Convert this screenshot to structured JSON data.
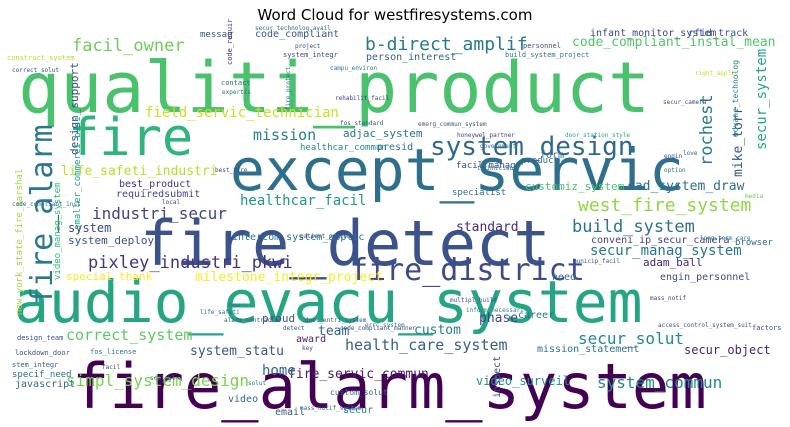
{
  "title": "Word Cloud for westfiresystems.com",
  "words": [
    {
      "text": "qualiti_product",
      "color": "#4ac16d"
    },
    {
      "text": "fire",
      "color": "#2fb47c"
    },
    {
      "text": "except_servic",
      "color": "#2e6f8e"
    },
    {
      "text": "fire_detect",
      "color": "#3b528b"
    },
    {
      "text": "audio_evacu_system",
      "color": "#25a584"
    },
    {
      "text": "fire_alarm_system",
      "color": "#440154"
    },
    {
      "text": "fire_alarm",
      "color": "#2a788e"
    },
    {
      "text": "system_design",
      "color": "#31688e"
    },
    {
      "text": "fire_district",
      "color": "#3e4a89"
    },
    {
      "text": "b-direct_amplif",
      "color": "#29798e"
    },
    {
      "text": "facil_owner",
      "color": "#6ece58"
    },
    {
      "text": "west_fire_system",
      "color": "#8fd744"
    },
    {
      "text": "pixley_industri_pkwi",
      "color": "#453581"
    },
    {
      "text": "industri_secur",
      "color": "#414487"
    },
    {
      "text": "build_system",
      "color": "#2c728e"
    },
    {
      "text": "health_care_system",
      "color": "#35608d"
    },
    {
      "text": "simpl_system_design",
      "color": "#7ad151"
    },
    {
      "text": "system_commun",
      "color": "#23888e"
    },
    {
      "text": "correct_system",
      "color": "#5ec962"
    },
    {
      "text": "secur_solut",
      "color": "#23898e"
    },
    {
      "text": "mission",
      "color": "#277f8e"
    },
    {
      "text": "rochest",
      "color": "#287c8e"
    },
    {
      "text": "field_servic_technician",
      "color": "#c8e020"
    },
    {
      "text": "life_safeti_industri",
      "color": "#b8de29"
    },
    {
      "text": "code_compliant_instal_mean",
      "color": "#52c569"
    },
    {
      "text": "healthcar_facil",
      "color": "#1f978b"
    },
    {
      "text": "cad_system_draw",
      "color": "#2d708e"
    },
    {
      "text": "milestone_integr_project",
      "color": "#fde725"
    },
    {
      "text": "secur_manag_system",
      "color": "#2b758e"
    },
    {
      "text": "system_statu",
      "color": "#3a548c"
    },
    {
      "text": "fire_servic_commun",
      "color": "#481b6d"
    },
    {
      "text": "video_surveil",
      "color": "#20928c"
    },
    {
      "text": "home",
      "color": "#33638d"
    },
    {
      "text": "custom",
      "color": "#26818e"
    },
    {
      "text": "phase",
      "color": "#404588"
    },
    {
      "text": "standard",
      "color": "#472c7a"
    },
    {
      "text": "customiz_system",
      "color": "#4ac16d"
    },
    {
      "text": "adjac_system",
      "color": "#2a778e"
    },
    {
      "text": "mike_torr",
      "color": "#39568c"
    },
    {
      "text": "secur_system",
      "color": "#21a685"
    },
    {
      "text": "adam_ball",
      "color": "#482677"
    },
    {
      "text": "design_support",
      "color": "#3d4d8a"
    },
    {
      "text": "person_interest",
      "color": "#33638d"
    },
    {
      "text": "intercom_system_applic",
      "color": "#2d718e"
    },
    {
      "text": "system_deploy",
      "color": "#3b518b"
    },
    {
      "text": "requiredsubmit",
      "color": "#3f4788"
    },
    {
      "text": "best_product",
      "color": "#46337f"
    },
    {
      "text": "system",
      "color": "#3e4989"
    },
    {
      "text": "special_thank",
      "color": "#fde725"
    },
    {
      "text": "secur_object",
      "color": "#482475"
    },
    {
      "text": "mission_statement",
      "color": "#2c738e"
    },
    {
      "text": "conveni_ip_secur_camera",
      "color": "#404688"
    },
    {
      "text": "engin_personnel",
      "color": "#3c4f8a"
    },
    {
      "text": "code_compliant",
      "color": "#38598c"
    },
    {
      "text": "new_york_state_fire_marshal",
      "color": "#9bd93c"
    },
    {
      "text": "smaller_commerci_busi",
      "color": "#1fa088"
    },
    {
      "text": "video_manag_system",
      "color": "#35b779"
    },
    {
      "text": "infant_monitor_system",
      "color": "#3f4889"
    },
    {
      "text": "rfid_track",
      "color": "#3b528b"
    },
    {
      "text": "career",
      "color": "#2b758e"
    },
    {
      "text": "presid",
      "color": "#2d718e"
    },
    {
      "text": "form",
      "color": "#2d708e"
    },
    {
      "text": "team",
      "color": "#31678e"
    },
    {
      "text": "award",
      "color": "#481f70"
    },
    {
      "text": "proud",
      "color": "#3b528b"
    },
    {
      "text": "need",
      "color": "#2c728e"
    },
    {
      "text": "javascript",
      "color": "#30698e"
    },
    {
      "text": "email",
      "color": "#38588c"
    },
    {
      "text": "video",
      "color": "#31678e"
    },
    {
      "text": "inspect",
      "color": "#3e4a89"
    },
    {
      "text": "specif_need",
      "color": "#2d708e"
    },
    {
      "text": "secur",
      "color": "#27808e"
    },
    {
      "text": "browser",
      "color": "#31688e"
    },
    {
      "text": "facil_manag",
      "color": "#3a548c"
    },
    {
      "text": "specialist",
      "color": "#2d718e"
    },
    {
      "text": "product",
      "color": "#2f6c8e"
    },
    {
      "text": "healthcar_commun",
      "color": "#23898e"
    },
    {
      "text": "messag",
      "color": "#39568c"
    },
    {
      "text": "advanc_technolog",
      "color": "#26828e"
    },
    {
      "text": "custom_solut",
      "color": "#31668e"
    },
    {
      "text": "system_integr",
      "color": "#3f4788"
    },
    {
      "text": "build_system_project",
      "color": "#2b748e"
    },
    {
      "text": "secur_technolog_avail",
      "color": "#33628d"
    },
    {
      "text": "personnel",
      "color": "#3b528b"
    },
    {
      "text": "code_requir",
      "color": "#46307e"
    },
    {
      "text": "contact",
      "color": "#30698e"
    },
    {
      "text": "expertis",
      "color": "#2d708e"
    },
    {
      "text": "project",
      "color": "#3f4889"
    },
    {
      "text": "campu_environ",
      "color": "#2a768e"
    },
    {
      "text": "rehabilit_facil",
      "color": "#424086"
    },
    {
      "text": "fire_protect",
      "color": "#2d718e"
    },
    {
      "text": "fos_standard",
      "color": "#3a538b"
    },
    {
      "text": "emerg_commun_system",
      "color": "#39558c"
    },
    {
      "text": "secur_camera",
      "color": "#3d4e8a"
    },
    {
      "text": "right_applic",
      "color": "#c2df23"
    },
    {
      "text": "honeywel_partner",
      "color": "#414487"
    },
    {
      "text": "door_station_style",
      "color": "#22a785"
    },
    {
      "text": "government",
      "color": "#2e6e8e"
    },
    {
      "text": "technician",
      "color": "#2c728e"
    },
    {
      "text": "engin",
      "color": "#3e4a89"
    },
    {
      "text": "option",
      "color": "#2d708e"
    },
    {
      "text": "love",
      "color": "#39568c"
    },
    {
      "text": "media",
      "color": "#6ccd5a"
    },
    {
      "text": "factors",
      "color": "#3b528b"
    },
    {
      "text": "design_team",
      "color": "#3a548c"
    },
    {
      "text": "lockdown_door",
      "color": "#3e4a89"
    },
    {
      "text": "stem_integr",
      "color": "#33638d"
    },
    {
      "text": "fos_license",
      "color": "#2d718e"
    },
    {
      "text": "mass_notif",
      "color": "#3f4788"
    },
    {
      "text": "municip_facil",
      "color": "#3b528b"
    },
    {
      "text": "long-term_care",
      "color": "#2a788e"
    },
    {
      "text": "patient_outcom",
      "color": "#3a548c"
    },
    {
      "text": "multipl_build",
      "color": "#3e4a89"
    },
    {
      "text": "inform_necessari",
      "color": "#26828e"
    },
    {
      "text": "access_control_system_suit",
      "color": "#3b528b"
    },
    {
      "text": "code_compliant_manner",
      "color": "#3f4788"
    },
    {
      "text": "mass_notif_system",
      "color": "#31688e"
    },
    {
      "text": "solut",
      "color": "#2d708e"
    },
    {
      "text": "scalabl",
      "color": "#39568c"
    },
    {
      "text": "facil",
      "color": "#3e4a89"
    },
    {
      "text": "errc_system",
      "color": "#2a788e"
    },
    {
      "text": "door_entri_system",
      "color": "#3b528b"
    },
    {
      "text": "life_safeti",
      "color": "#2d718e"
    },
    {
      "text": "alarm_contractor",
      "color": "#3a548c"
    },
    {
      "text": "best_fire",
      "color": "#3e4a89"
    },
    {
      "text": "construct_system",
      "color": "#b5de2b"
    },
    {
      "text": "correct_solut",
      "color": "#3b528b"
    },
    {
      "text": "code_compliant_inst",
      "color": "#31688e"
    },
    {
      "text": "key",
      "color": "#3f4788"
    },
    {
      "text": "new",
      "color": "#2d708e"
    },
    {
      "text": "detect",
      "color": "#3a548c"
    },
    {
      "text": "local",
      "color": "#3e4a89"
    }
  ]
}
